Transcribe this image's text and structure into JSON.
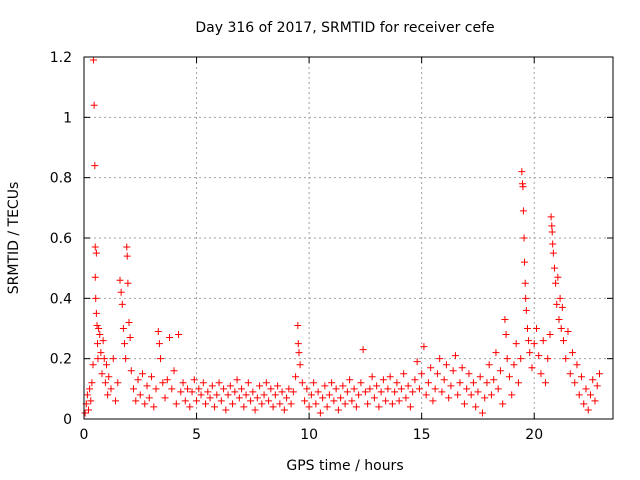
{
  "chart_data": {
    "type": "scatter",
    "title": "Day 316 of 2017, SRMTID for receiver cefe",
    "xlabel": "GPS time / hours",
    "ylabel": "SRMTID / TECUs",
    "xlim": [
      0,
      23.5
    ],
    "ylim": [
      0,
      1.2
    ],
    "xticks": [
      0,
      5,
      10,
      15,
      20
    ],
    "xtick_labels": [
      "0",
      "5",
      "10",
      "15",
      "20"
    ],
    "yticks": [
      0,
      0.2,
      0.4,
      0.6,
      0.8,
      1.0,
      1.2
    ],
    "ytick_labels": [
      "0",
      "0.2",
      "0.4",
      "0.6",
      "0.8",
      "1",
      "1.2"
    ],
    "grid": true,
    "marker": "+",
    "color": "#ff0000",
    "series": [
      {
        "name": "SRMTID",
        "points": [
          [
            0.05,
            0.02
          ],
          [
            0.1,
            0.05
          ],
          [
            0.15,
            0.08
          ],
          [
            0.2,
            0.03
          ],
          [
            0.25,
            0.1
          ],
          [
            0.3,
            0.06
          ],
          [
            0.35,
            0.12
          ],
          [
            0.4,
            0.18
          ],
          [
            0.42,
            1.19
          ],
          [
            0.45,
            1.04
          ],
          [
            0.48,
            0.84
          ],
          [
            0.5,
            0.57
          ],
          [
            0.5,
            0.47
          ],
          [
            0.52,
            0.4
          ],
          [
            0.55,
            0.55
          ],
          [
            0.55,
            0.35
          ],
          [
            0.58,
            0.31
          ],
          [
            0.6,
            0.25
          ],
          [
            0.62,
            0.2
          ],
          [
            0.65,
            0.3
          ],
          [
            0.7,
            0.28
          ],
          [
            0.75,
            0.22
          ],
          [
            0.8,
            0.15
          ],
          [
            0.85,
            0.26
          ],
          [
            0.9,
            0.2
          ],
          [
            0.95,
            0.12
          ],
          [
            1.0,
            0.18
          ],
          [
            1.05,
            0.08
          ],
          [
            1.1,
            0.14
          ],
          [
            1.2,
            0.1
          ],
          [
            1.3,
            0.2
          ],
          [
            1.4,
            0.06
          ],
          [
            1.5,
            0.12
          ],
          [
            1.6,
            0.46
          ],
          [
            1.65,
            0.42
          ],
          [
            1.7,
            0.38
          ],
          [
            1.75,
            0.3
          ],
          [
            1.8,
            0.25
          ],
          [
            1.85,
            0.2
          ],
          [
            1.9,
            0.57
          ],
          [
            1.92,
            0.54
          ],
          [
            1.95,
            0.45
          ],
          [
            2.0,
            0.32
          ],
          [
            2.05,
            0.27
          ],
          [
            2.1,
            0.16
          ],
          [
            2.2,
            0.1
          ],
          [
            2.3,
            0.06
          ],
          [
            2.4,
            0.13
          ],
          [
            2.5,
            0.08
          ],
          [
            2.6,
            0.15
          ],
          [
            2.7,
            0.05
          ],
          [
            2.8,
            0.11
          ],
          [
            2.9,
            0.07
          ],
          [
            3.0,
            0.14
          ],
          [
            3.1,
            0.04
          ],
          [
            3.2,
            0.1
          ],
          [
            3.3,
            0.29
          ],
          [
            3.35,
            0.25
          ],
          [
            3.4,
            0.2
          ],
          [
            3.5,
            0.12
          ],
          [
            3.6,
            0.07
          ],
          [
            3.7,
            0.13
          ],
          [
            3.8,
            0.27
          ],
          [
            3.9,
            0.1
          ],
          [
            4.0,
            0.16
          ],
          [
            4.1,
            0.05
          ],
          [
            4.2,
            0.28
          ],
          [
            4.3,
            0.09
          ],
          [
            4.4,
            0.12
          ],
          [
            4.5,
            0.06
          ],
          [
            4.6,
            0.1
          ],
          [
            4.7,
            0.04
          ],
          [
            4.8,
            0.09
          ],
          [
            4.9,
            0.13
          ],
          [
            5.0,
            0.06
          ],
          [
            5.1,
            0.1
          ],
          [
            5.2,
            0.08
          ],
          [
            5.3,
            0.12
          ],
          [
            5.4,
            0.05
          ],
          [
            5.5,
            0.09
          ],
          [
            5.6,
            0.07
          ],
          [
            5.7,
            0.11
          ],
          [
            5.8,
            0.04
          ],
          [
            5.9,
            0.08
          ],
          [
            6.0,
            0.12
          ],
          [
            6.1,
            0.06
          ],
          [
            6.2,
            0.1
          ],
          [
            6.3,
            0.03
          ],
          [
            6.4,
            0.08
          ],
          [
            6.5,
            0.11
          ],
          [
            6.6,
            0.05
          ],
          [
            6.7,
            0.09
          ],
          [
            6.8,
            0.13
          ],
          [
            6.9,
            0.07
          ],
          [
            7.0,
            0.1
          ],
          [
            7.1,
            0.04
          ],
          [
            7.2,
            0.08
          ],
          [
            7.3,
            0.12
          ],
          [
            7.4,
            0.06
          ],
          [
            7.5,
            0.09
          ],
          [
            7.6,
            0.03
          ],
          [
            7.7,
            0.07
          ],
          [
            7.8,
            0.11
          ],
          [
            7.9,
            0.05
          ],
          [
            8.0,
            0.08
          ],
          [
            8.1,
            0.12
          ],
          [
            8.2,
            0.06
          ],
          [
            8.3,
            0.1
          ],
          [
            8.4,
            0.04
          ],
          [
            8.5,
            0.08
          ],
          [
            8.6,
            0.11
          ],
          [
            8.7,
            0.05
          ],
          [
            8.8,
            0.09
          ],
          [
            8.9,
            0.03
          ],
          [
            9.0,
            0.07
          ],
          [
            9.1,
            0.1
          ],
          [
            9.2,
            0.05
          ],
          [
            9.3,
            0.09
          ],
          [
            9.4,
            0.14
          ],
          [
            9.5,
            0.31
          ],
          [
            9.52,
            0.25
          ],
          [
            9.55,
            0.22
          ],
          [
            9.6,
            0.18
          ],
          [
            9.7,
            0.12
          ],
          [
            9.8,
            0.06
          ],
          [
            9.9,
            0.1
          ],
          [
            10.0,
            0.04
          ],
          [
            10.1,
            0.08
          ],
          [
            10.2,
            0.12
          ],
          [
            10.3,
            0.05
          ],
          [
            10.4,
            0.09
          ],
          [
            10.5,
            0.02
          ],
          [
            10.6,
            0.07
          ],
          [
            10.7,
            0.11
          ],
          [
            10.8,
            0.04
          ],
          [
            10.9,
            0.08
          ],
          [
            11.0,
            0.12
          ],
          [
            11.1,
            0.06
          ],
          [
            11.2,
            0.1
          ],
          [
            11.3,
            0.03
          ],
          [
            11.4,
            0.07
          ],
          [
            11.5,
            0.11
          ],
          [
            11.6,
            0.05
          ],
          [
            11.7,
            0.09
          ],
          [
            11.8,
            0.13
          ],
          [
            11.9,
            0.06
          ],
          [
            12.0,
            0.1
          ],
          [
            12.1,
            0.04
          ],
          [
            12.2,
            0.08
          ],
          [
            12.3,
            0.12
          ],
          [
            12.4,
            0.23
          ],
          [
            12.5,
            0.09
          ],
          [
            12.6,
            0.05
          ],
          [
            12.7,
            0.1
          ],
          [
            12.8,
            0.14
          ],
          [
            12.9,
            0.07
          ],
          [
            13.0,
            0.11
          ],
          [
            13.1,
            0.04
          ],
          [
            13.2,
            0.09
          ],
          [
            13.3,
            0.13
          ],
          [
            13.4,
            0.06
          ],
          [
            13.5,
            0.1
          ],
          [
            13.6,
            0.14
          ],
          [
            13.7,
            0.05
          ],
          [
            13.8,
            0.09
          ],
          [
            13.9,
            0.12
          ],
          [
            14.0,
            0.06
          ],
          [
            14.1,
            0.1
          ],
          [
            14.2,
            0.15
          ],
          [
            14.3,
            0.07
          ],
          [
            14.4,
            0.11
          ],
          [
            14.5,
            0.04
          ],
          [
            14.6,
            0.09
          ],
          [
            14.7,
            0.13
          ],
          [
            14.8,
            0.19
          ],
          [
            14.9,
            0.1
          ],
          [
            15.0,
            0.15
          ],
          [
            15.1,
            0.24
          ],
          [
            15.2,
            0.08
          ],
          [
            15.3,
            0.12
          ],
          [
            15.4,
            0.17
          ],
          [
            15.5,
            0.06
          ],
          [
            15.6,
            0.1
          ],
          [
            15.7,
            0.15
          ],
          [
            15.8,
            0.2
          ],
          [
            15.9,
            0.09
          ],
          [
            16.0,
            0.13
          ],
          [
            16.1,
            0.18
          ],
          [
            16.2,
            0.07
          ],
          [
            16.3,
            0.11
          ],
          [
            16.4,
            0.16
          ],
          [
            16.5,
            0.21
          ],
          [
            16.6,
            0.08
          ],
          [
            16.7,
            0.12
          ],
          [
            16.8,
            0.17
          ],
          [
            16.9,
            0.05
          ],
          [
            17.0,
            0.1
          ],
          [
            17.1,
            0.15
          ],
          [
            17.2,
            0.08
          ],
          [
            17.3,
            0.12
          ],
          [
            17.4,
            0.04
          ],
          [
            17.5,
            0.09
          ],
          [
            17.6,
            0.14
          ],
          [
            17.7,
            0.02
          ],
          [
            17.8,
            0.07
          ],
          [
            17.9,
            0.12
          ],
          [
            18.0,
            0.18
          ],
          [
            18.1,
            0.08
          ],
          [
            18.2,
            0.13
          ],
          [
            18.3,
            0.22
          ],
          [
            18.4,
            0.1
          ],
          [
            18.5,
            0.16
          ],
          [
            18.6,
            0.05
          ],
          [
            18.7,
            0.33
          ],
          [
            18.75,
            0.28
          ],
          [
            18.8,
            0.2
          ],
          [
            18.9,
            0.14
          ],
          [
            19.0,
            0.08
          ],
          [
            19.1,
            0.18
          ],
          [
            19.2,
            0.25
          ],
          [
            19.3,
            0.12
          ],
          [
            19.4,
            0.2
          ],
          [
            19.45,
            0.82
          ],
          [
            19.48,
            0.78
          ],
          [
            19.5,
            0.77
          ],
          [
            19.52,
            0.69
          ],
          [
            19.55,
            0.6
          ],
          [
            19.57,
            0.52
          ],
          [
            19.6,
            0.45
          ],
          [
            19.62,
            0.4
          ],
          [
            19.65,
            0.36
          ],
          [
            19.7,
            0.3
          ],
          [
            19.75,
            0.26
          ],
          [
            19.8,
            0.22
          ],
          [
            19.9,
            0.17
          ],
          [
            20.0,
            0.25
          ],
          [
            20.1,
            0.3
          ],
          [
            20.2,
            0.21
          ],
          [
            20.3,
            0.15
          ],
          [
            20.4,
            0.26
          ],
          [
            20.5,
            0.12
          ],
          [
            20.6,
            0.2
          ],
          [
            20.7,
            0.28
          ],
          [
            20.75,
            0.67
          ],
          [
            20.78,
            0.64
          ],
          [
            20.8,
            0.62
          ],
          [
            20.82,
            0.58
          ],
          [
            20.85,
            0.55
          ],
          [
            20.9,
            0.5
          ],
          [
            20.95,
            0.45
          ],
          [
            21.0,
            0.38
          ],
          [
            21.05,
            0.47
          ],
          [
            21.1,
            0.33
          ],
          [
            21.15,
            0.4
          ],
          [
            21.2,
            0.3
          ],
          [
            21.25,
            0.37
          ],
          [
            21.3,
            0.26
          ],
          [
            21.4,
            0.2
          ],
          [
            21.5,
            0.29
          ],
          [
            21.6,
            0.15
          ],
          [
            21.7,
            0.22
          ],
          [
            21.8,
            0.12
          ],
          [
            21.9,
            0.18
          ],
          [
            22.0,
            0.08
          ],
          [
            22.1,
            0.14
          ],
          [
            22.2,
            0.05
          ],
          [
            22.3,
            0.1
          ],
          [
            22.4,
            0.03
          ],
          [
            22.5,
            0.08
          ],
          [
            22.6,
            0.13
          ],
          [
            22.7,
            0.06
          ],
          [
            22.8,
            0.11
          ],
          [
            22.9,
            0.15
          ]
        ]
      }
    ]
  }
}
